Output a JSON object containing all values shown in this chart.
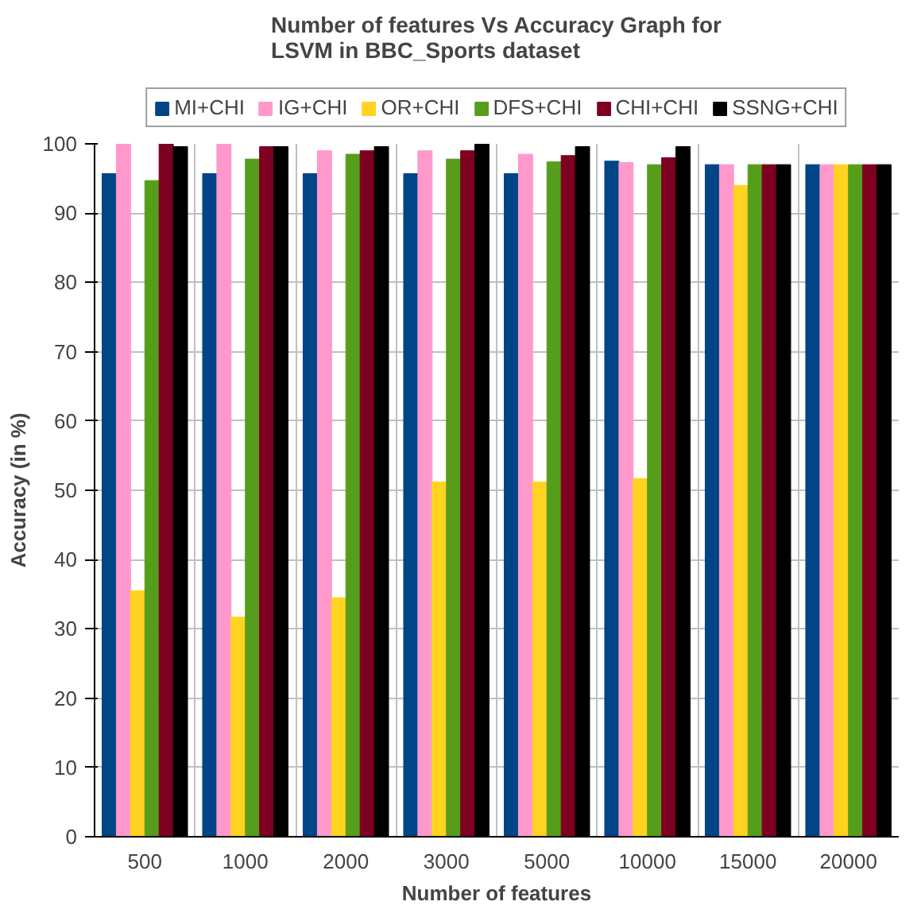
{
  "chart_data": {
    "type": "bar",
    "title": "Number of features Vs Accuracy Graph for\nLSVM in BBC_Sports dataset",
    "xlabel": "Number of features",
    "ylabel": "Accuracy (in %)",
    "categories": [
      "500",
      "1000",
      "2000",
      "3000",
      "5000",
      "10000",
      "15000",
      "20000"
    ],
    "series": [
      {
        "name": "MI+CHI",
        "color": "#004586",
        "values": [
          95.7,
          95.7,
          95.7,
          95.7,
          95.7,
          97.5,
          97,
          97
        ]
      },
      {
        "name": "IG+CHI",
        "color": "#ff99cc",
        "values": [
          100,
          100,
          99,
          99,
          98.5,
          97.3,
          97,
          97
        ]
      },
      {
        "name": "OR+CHI",
        "color": "#ffd320",
        "values": [
          35.5,
          31.7,
          34.5,
          51.2,
          51.2,
          51.7,
          94,
          97
        ]
      },
      {
        "name": "DFS+CHI",
        "color": "#579d1c",
        "values": [
          94.7,
          97.8,
          98.5,
          97.8,
          97.4,
          97,
          97,
          97
        ]
      },
      {
        "name": "CHI+CHI",
        "color": "#7e0021",
        "values": [
          100,
          99.6,
          99,
          99,
          98.3,
          98,
          97,
          97
        ]
      },
      {
        "name": "SSNG+CHI",
        "color": "#000000",
        "values": [
          99.6,
          99.6,
          99.6,
          100,
          99.6,
          99.6,
          97,
          97
        ]
      }
    ],
    "ylim": [
      0,
      100
    ],
    "yticks": [
      0,
      10,
      20,
      30,
      40,
      50,
      60,
      70,
      80,
      90,
      100
    ],
    "grid": true,
    "legend": "top"
  }
}
